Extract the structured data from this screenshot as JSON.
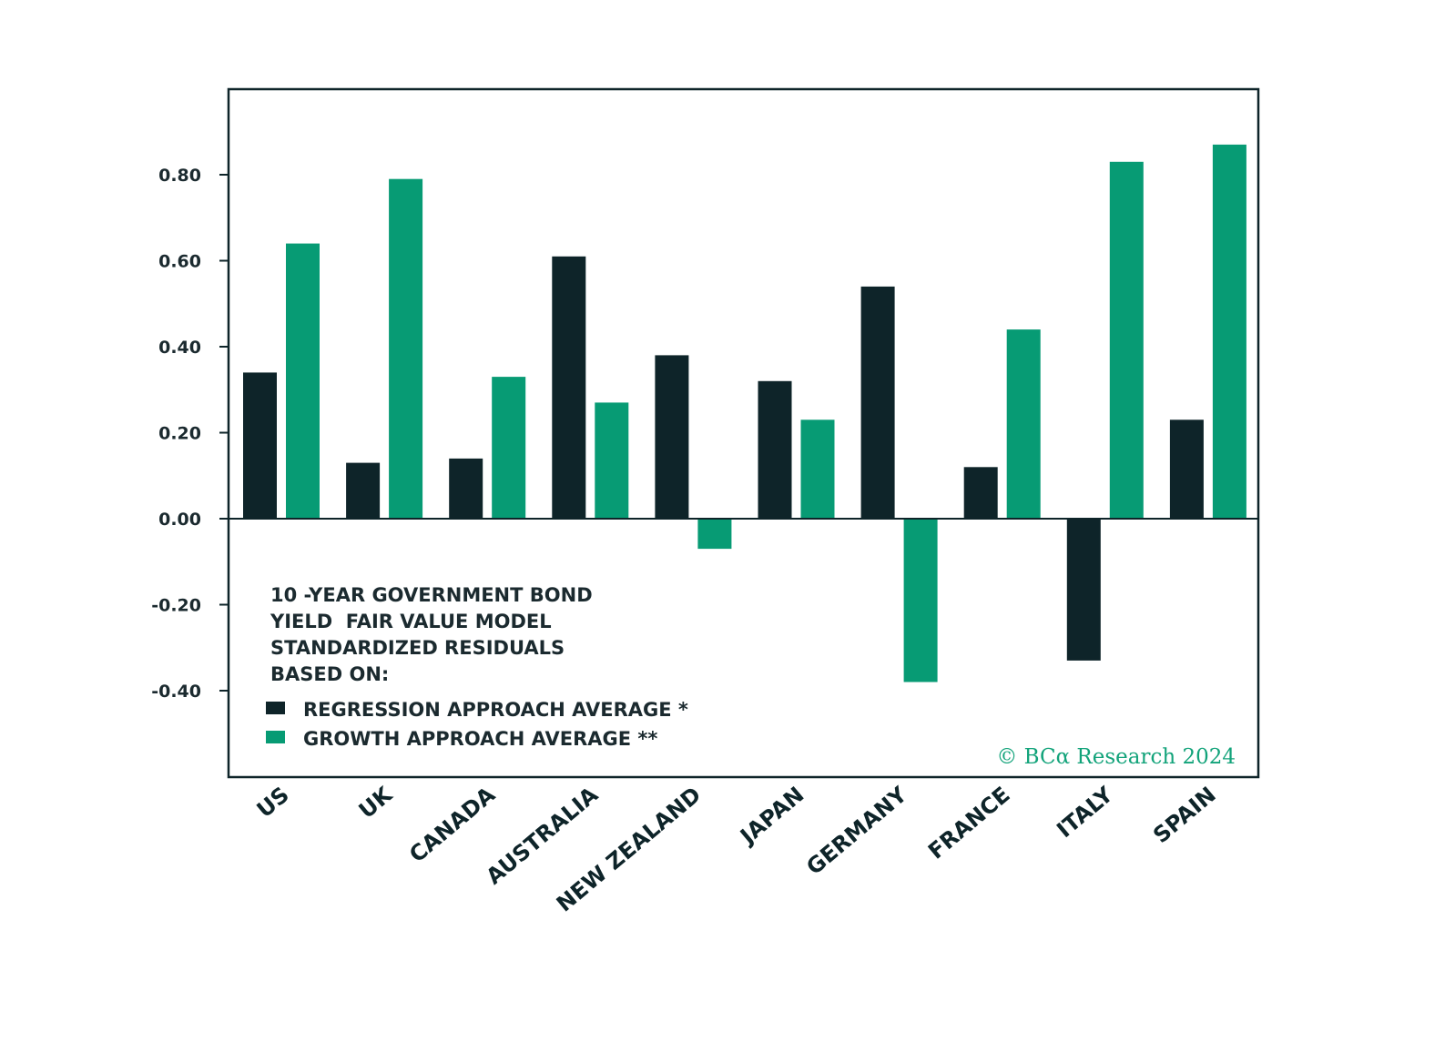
{
  "chart_data": {
    "type": "bar",
    "title": "10 -YEAR GOVERNMENT BOND YIELD  FAIR VALUE MODEL STANDARDIZED RESIDUALS BASED ON:",
    "title_lines": [
      "10 -YEAR GOVERNMENT BOND",
      "YIELD  FAIR VALUE MODEL",
      "STANDARDIZED RESIDUALS",
      "BASED ON:"
    ],
    "categories": [
      "US",
      "UK",
      "CANADA",
      "AUSTRALIA",
      "NEW ZEALAND",
      "JAPAN",
      "GERMANY",
      "FRANCE",
      "ITALY",
      "SPAIN"
    ],
    "series": [
      {
        "name": "REGRESSION APPROACH AVERAGE *",
        "color": "#0e2429",
        "values": [
          0.34,
          0.13,
          0.14,
          0.61,
          0.38,
          0.32,
          0.54,
          0.12,
          -0.33,
          0.23
        ]
      },
      {
        "name": "GROWTH APPROACH AVERAGE **",
        "color": "#079b74",
        "values": [
          0.64,
          0.79,
          0.33,
          0.27,
          -0.07,
          0.23,
          -0.38,
          0.44,
          0.83,
          0.87
        ]
      }
    ],
    "y_ticks": [
      "0.80",
      "0.60",
      "0.40",
      "0.20",
      "0.00",
      "-0.20",
      "-0.40"
    ],
    "y_tick_values": [
      0.8,
      0.6,
      0.4,
      0.2,
      0.0,
      -0.2,
      -0.4
    ],
    "ylim": [
      -0.6,
      1.0
    ],
    "xlabel": "",
    "ylabel": "",
    "legend_position": "bottom-left",
    "credit": "© BCα Research 2024"
  }
}
